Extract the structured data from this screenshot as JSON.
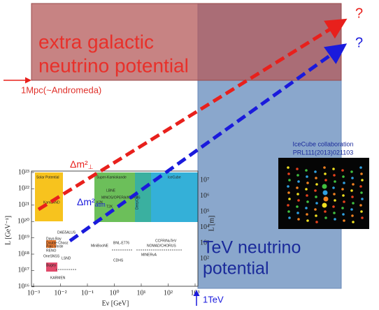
{
  "slide": {
    "question_red": "?",
    "question_blue": "?",
    "extra_galactic": [
      "extra galactic",
      "neutrino potential"
    ],
    "mpc_label": "1Mpc(~Andromeda)",
    "tev_potential": [
      "TeV neutrino",
      "potential"
    ],
    "tev_label": "1TeV",
    "icecube_caption": [
      "IceCube collaboration",
      "PRL111(2013)021103"
    ],
    "dm_sol": {
      "base": "Δm²",
      "sub": "⊥"
    },
    "dm_atm": {
      "base": "Δm²",
      "sub": "atm"
    }
  },
  "plot": {
    "y_axis_label": "L [GeV⁻¹]",
    "x_axis_label": "Eν [GeV]",
    "right_axis_label": "L [m]",
    "yticks": [
      "10²³",
      "10²²",
      "10²¹",
      "10²⁰",
      "10¹⁹",
      "10¹⁸",
      "10¹⁷",
      "10¹⁶"
    ],
    "xticks": [
      "10⁻³",
      "10⁻²",
      "10⁻¹",
      "10⁰",
      "10¹",
      "10²",
      "10³"
    ],
    "right_ticks": [
      "10⁷",
      "10⁶",
      "10⁵",
      "10⁴",
      "10³",
      "10²"
    ],
    "regions": [
      "Solar Potential",
      "Super-Kamiokande",
      "DeepCore",
      "IceCube"
    ],
    "experiments": [
      "KamLAND",
      "LBNE",
      "T2K",
      "MINOS/OPERA/ICARUS",
      "K2K",
      "DAEδALUS",
      "Daya Bay",
      "Double Chooz",
      "Palo Verde",
      "RENO",
      "Bugey",
      "OneSNSS",
      "LSND",
      "KARMEN",
      "MiniBooNE",
      "BNL-E776",
      "CDHS",
      "MINERvA",
      "CCFR/NuTeV",
      "NOMAD/CHORUS"
    ]
  }
}
